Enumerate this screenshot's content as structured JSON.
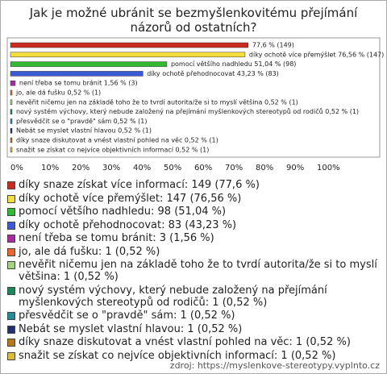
{
  "chart_data": {
    "type": "bar",
    "title": "Jak je možné ubránit se bezmyšlenkovitému přejímání názorů od ostatních?",
    "categories": [
      "díky snaze získat více informací: 149 (77,6 %)",
      "díky ochotě více přemýšlet: 147 (76,56 %)",
      "pomocí většího nadhledu: 98 (51,04 %)",
      "díky ochotě přehodnocovat: 83 (43,23 %)",
      "není třeba se tomu bránit: 3 (1,56 %)",
      "jo, ale dá fušku: 1 (0,52 %)",
      "nevěřit ničemu jen na základě toho že to tvrdí autorita/že si to myslí většina: 1 (0,52 %)",
      "nový systém výchovy, který nebude založený na přejímání myšlenkových stereotypů od rodičů: 1 (0,52 %)",
      "přesvědčit se o \"pravdě\" sám: 1 (0,52 %)",
      "Nebát se myslet vlastní hlavou: 1 (0,52 %)",
      "díky snaze diskutovat a vnést vlastní pohled na věc: 1 (0,52 %)",
      "snažit se získat co nejvíce objektivních informací: 1 (0,52 %)"
    ],
    "values": [
      77.6,
      76.56,
      51.04,
      43.23,
      1.56,
      0.52,
      0.52,
      0.52,
      0.52,
      0.52,
      0.52,
      0.52
    ],
    "value_labels": [
      "77,6 % (149)",
      "díky ochotě více přemýšlet 76,56 % (147)",
      "pomocí většího nadhledu 51,04 % (98)",
      "díky ochotě přehodnocovat 43,23 % (83)",
      "není třeba se tomu bránit 1,56 % (3)",
      "jo, ale dá fušku 0,52 % (1)",
      "nevěřit ničemu jen na základě toho že to tvrdí autorita/že si to myslí většina 0,52 % (1)",
      "nový systém výchovy, který nebude založený na přejímání myšlenkových stereotypů od rodičů 0,52 % (1)",
      "přesvědčit se o \"pravdě\" sám 0,52 % (1)",
      "Nebát se myslet vlastní hlavou 0,52 % (1)",
      "díky snaze diskutovat a vnést vlastní pohled na věc 0,52 % (1)",
      "snažit se získat co nejvíce objektivních informací 0,52 % (1)"
    ],
    "colors": [
      "#cc2a1e",
      "#f5df3c",
      "#33b833",
      "#3b5bd6",
      "#a62ca6",
      "#e8692a",
      "#9fd680",
      "#178a5a",
      "#238a9c",
      "#23306e",
      "#b8761a",
      "#e0bb3a"
    ],
    "xlim": [
      0,
      100
    ],
    "xticks": [
      {
        "value": 0,
        "label": "0%"
      },
      {
        "value": 10,
        "label": "10%"
      },
      {
        "value": 20,
        "label": "20%"
      },
      {
        "value": 30,
        "label": "30%"
      },
      {
        "value": 40,
        "label": "40%"
      },
      {
        "value": 50,
        "label": "50%"
      },
      {
        "value": 60,
        "label": "60%"
      },
      {
        "value": 70,
        "label": "70%"
      },
      {
        "value": 80,
        "label": "80%"
      },
      {
        "value": 90,
        "label": "90%"
      },
      {
        "value": 100,
        "label": "100%"
      }
    ],
    "source": "zdroj: https://myslenkove-stereotypy.vyplnto.cz"
  }
}
